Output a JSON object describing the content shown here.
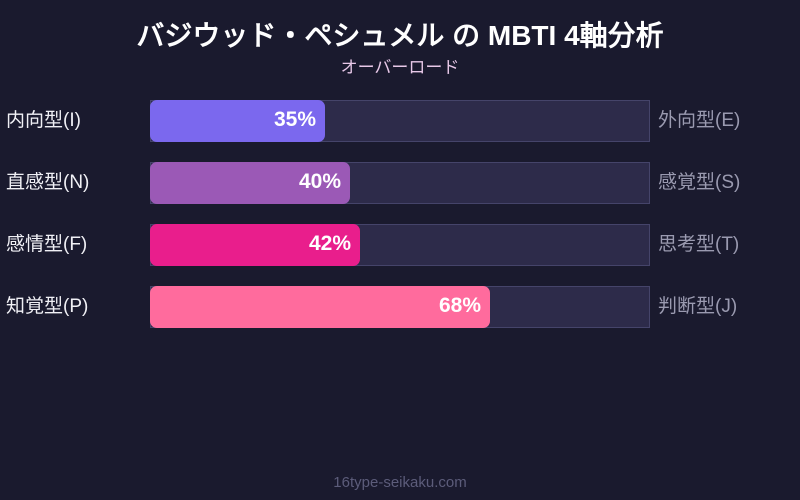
{
  "title": "バジウッド・ペシュメル の MBTI 4軸分析",
  "subtitle": "オーバーロード",
  "footer": "16type-seikaku.com",
  "chart_data": {
    "type": "bar",
    "orientation": "horizontal",
    "title": "バジウッド・ペシュメル の MBTI 4軸分析",
    "subtitle": "オーバーロード",
    "xlim": [
      0,
      100
    ],
    "grid": false,
    "rows": [
      {
        "left": "内向型(I)",
        "right": "外向型(E)",
        "value": 35,
        "label": "35%",
        "color": "#7b68ee"
      },
      {
        "left": "直感型(N)",
        "right": "感覚型(S)",
        "value": 40,
        "label": "40%",
        "color": "#9b59b6"
      },
      {
        "left": "感情型(F)",
        "right": "思考型(T)",
        "value": 42,
        "label": "42%",
        "color": "#e91e8c"
      },
      {
        "left": "知覚型(P)",
        "right": "判断型(J)",
        "value": 68,
        "label": "68%",
        "color": "#ff6b9d"
      }
    ]
  }
}
